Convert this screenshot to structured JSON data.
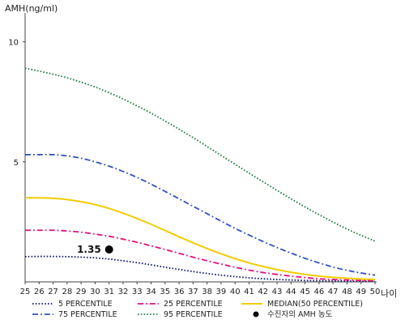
{
  "chart_data": {
    "type": "line",
    "ylabel": "AMH(ng/ml)",
    "xlabel": "나이",
    "xlim": [
      25,
      50
    ],
    "ylim": [
      0,
      11
    ],
    "x_ticks": [
      25,
      26,
      27,
      28,
      29,
      30,
      31,
      32,
      33,
      34,
      35,
      36,
      37,
      38,
      39,
      40,
      41,
      42,
      43,
      44,
      45,
      46,
      47,
      48,
      49,
      50
    ],
    "y_ticks": [
      5,
      10
    ],
    "grid": false,
    "legend_position": "bottom",
    "series": [
      {
        "name": "5 PERCENTILE",
        "color": "#0a1a6e",
        "dash": "dotted",
        "x": [
          25,
          26,
          27,
          28,
          29,
          30,
          31,
          32,
          33,
          34,
          35,
          36,
          37,
          38,
          39,
          40,
          41,
          42,
          43,
          44,
          45,
          46,
          47,
          48,
          49,
          50
        ],
        "y": [
          1.05,
          1.06,
          1.06,
          1.05,
          1.03,
          1.0,
          0.95,
          0.88,
          0.8,
          0.71,
          0.61,
          0.52,
          0.43,
          0.35,
          0.28,
          0.22,
          0.17,
          0.13,
          0.1,
          0.08,
          0.06,
          0.05,
          0.04,
          0.03,
          0.03,
          0.03
        ]
      },
      {
        "name": "25 PERCENTILE",
        "color": "#e0107e",
        "dash": "dashdot",
        "x": [
          25,
          26,
          27,
          28,
          29,
          30,
          31,
          32,
          33,
          34,
          35,
          36,
          37,
          38,
          39,
          40,
          41,
          42,
          43,
          44,
          45,
          46,
          47,
          48,
          49,
          50
        ],
        "y": [
          2.15,
          2.15,
          2.15,
          2.12,
          2.07,
          1.99,
          1.9,
          1.78,
          1.65,
          1.5,
          1.35,
          1.19,
          1.03,
          0.88,
          0.74,
          0.61,
          0.49,
          0.39,
          0.31,
          0.24,
          0.18,
          0.13,
          0.1,
          0.08,
          0.06,
          0.05
        ]
      },
      {
        "name": "MEDIAN(50 PERCENTILE)",
        "color": "#f2cc00",
        "dash": "solid",
        "x": [
          25,
          26,
          27,
          28,
          29,
          30,
          31,
          32,
          33,
          34,
          35,
          36,
          37,
          38,
          39,
          40,
          41,
          42,
          43,
          44,
          45,
          46,
          47,
          48,
          49,
          50
        ],
        "y": [
          3.5,
          3.5,
          3.48,
          3.43,
          3.34,
          3.22,
          3.06,
          2.86,
          2.64,
          2.4,
          2.14,
          1.88,
          1.63,
          1.39,
          1.17,
          0.97,
          0.79,
          0.64,
          0.51,
          0.4,
          0.31,
          0.24,
          0.19,
          0.15,
          0.12,
          0.1
        ]
      },
      {
        "name": "75 PERCENTILE",
        "color": "#3550c0",
        "dash": "dashdot",
        "x": [
          25,
          26,
          27,
          28,
          29,
          30,
          31,
          32,
          33,
          34,
          35,
          36,
          37,
          38,
          39,
          40,
          41,
          42,
          43,
          44,
          45,
          46,
          47,
          48,
          49,
          50
        ],
        "y": [
          5.3,
          5.3,
          5.3,
          5.25,
          5.15,
          5.0,
          4.82,
          4.6,
          4.35,
          4.07,
          3.77,
          3.46,
          3.15,
          2.84,
          2.53,
          2.23,
          1.95,
          1.68,
          1.43,
          1.2,
          0.98,
          0.79,
          0.62,
          0.48,
          0.37,
          0.28
        ]
      },
      {
        "name": "95 PERCENTILE",
        "color": "#1e7a40",
        "dash": "dotted",
        "x": [
          25,
          26,
          27,
          28,
          29,
          30,
          31,
          32,
          33,
          34,
          35,
          36,
          37,
          38,
          39,
          40,
          41,
          42,
          43,
          44,
          45,
          46,
          47,
          48,
          49,
          50
        ],
        "y": [
          8.9,
          8.78,
          8.65,
          8.5,
          8.32,
          8.12,
          7.88,
          7.62,
          7.33,
          7.03,
          6.7,
          6.36,
          6.01,
          5.64,
          5.27,
          4.9,
          4.53,
          4.17,
          3.81,
          3.46,
          3.12,
          2.8,
          2.49,
          2.2,
          1.94,
          1.7
        ]
      }
    ],
    "marker": {
      "name": "수진자의 AMH 농도",
      "x": 31,
      "y": 1.35,
      "label": "1.35",
      "color": "#000000"
    }
  },
  "legend": [
    {
      "label": "5 PERCENTILE",
      "color": "#0a1a6e",
      "dash": "dotted"
    },
    {
      "label": "25 PERCENTILE",
      "color": "#e0107e",
      "dash": "dashdot"
    },
    {
      "label": "MEDIAN(50 PERCENTILE)",
      "color": "#f2cc00",
      "dash": "solid"
    },
    {
      "label": "75 PERCENTILE",
      "color": "#3550c0",
      "dash": "dashdot"
    },
    {
      "label": "95 PERCENTILE",
      "color": "#1e7a40",
      "dash": "dotted"
    },
    {
      "label": "수진자의 AMH 농도",
      "color": "#000000",
      "dash": "marker"
    }
  ]
}
